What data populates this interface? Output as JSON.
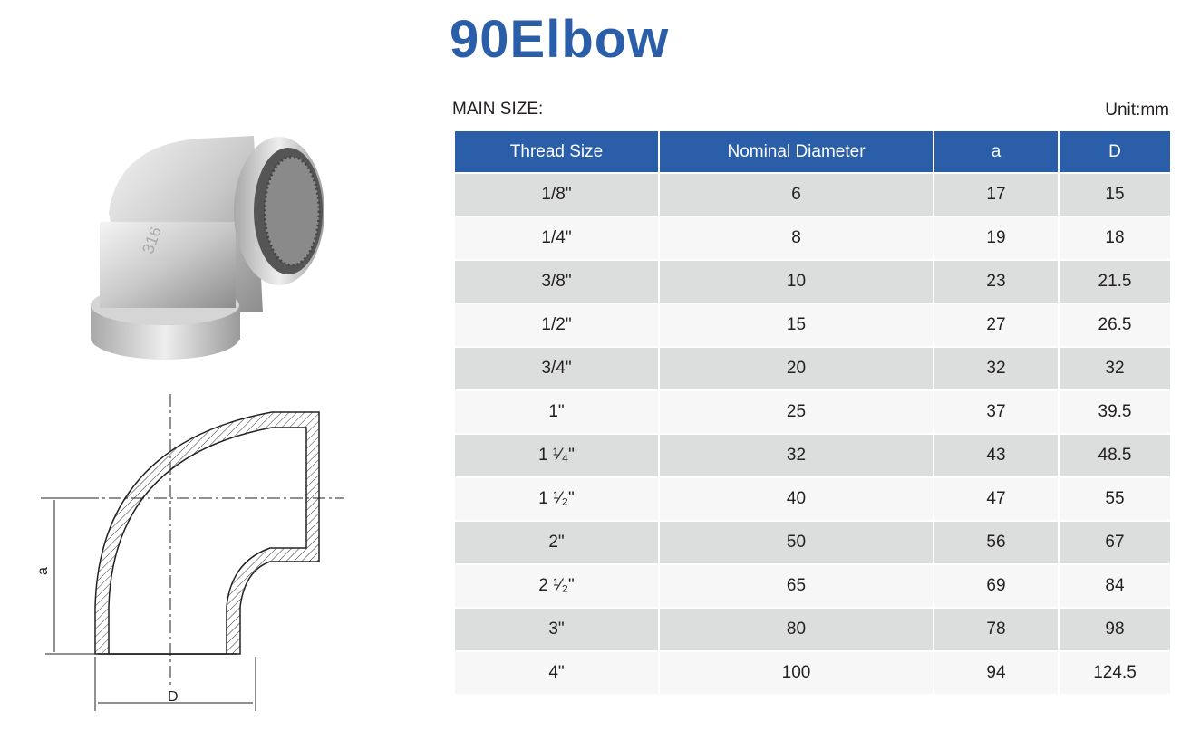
{
  "title": "90Elbow",
  "main_size_label": "MAIN SIZE:",
  "unit_label": "Unit:mm",
  "accent_color": "#2a5ea8",
  "table": {
    "headers": [
      "Thread Size",
      "Nominal Diameter",
      "a",
      "D"
    ],
    "rows": [
      [
        "1/8\"",
        "6",
        "17",
        "15"
      ],
      [
        "1/4\"",
        "8",
        "19",
        "18"
      ],
      [
        "3/8\"",
        "10",
        "23",
        "21.5"
      ],
      [
        "1/2\"",
        "15",
        "27",
        "26.5"
      ],
      [
        "3/4\"",
        "20",
        "32",
        "32"
      ],
      [
        "1\"",
        "25",
        "37",
        "39.5"
      ],
      [
        "1 ¹⁄₄\"",
        "32",
        "43",
        "48.5"
      ],
      [
        "1 ¹⁄₂\"",
        "40",
        "47",
        "55"
      ],
      [
        "2\"",
        "50",
        "56",
        "67"
      ],
      [
        "2 ¹⁄₂\"",
        "65",
        "69",
        "84"
      ],
      [
        "3\"",
        "80",
        "78",
        "98"
      ],
      [
        "4\"",
        "100",
        "94",
        "124.5"
      ]
    ]
  },
  "drawing": {
    "dim_a": "a",
    "dim_D": "D"
  },
  "photo_marking": "316"
}
